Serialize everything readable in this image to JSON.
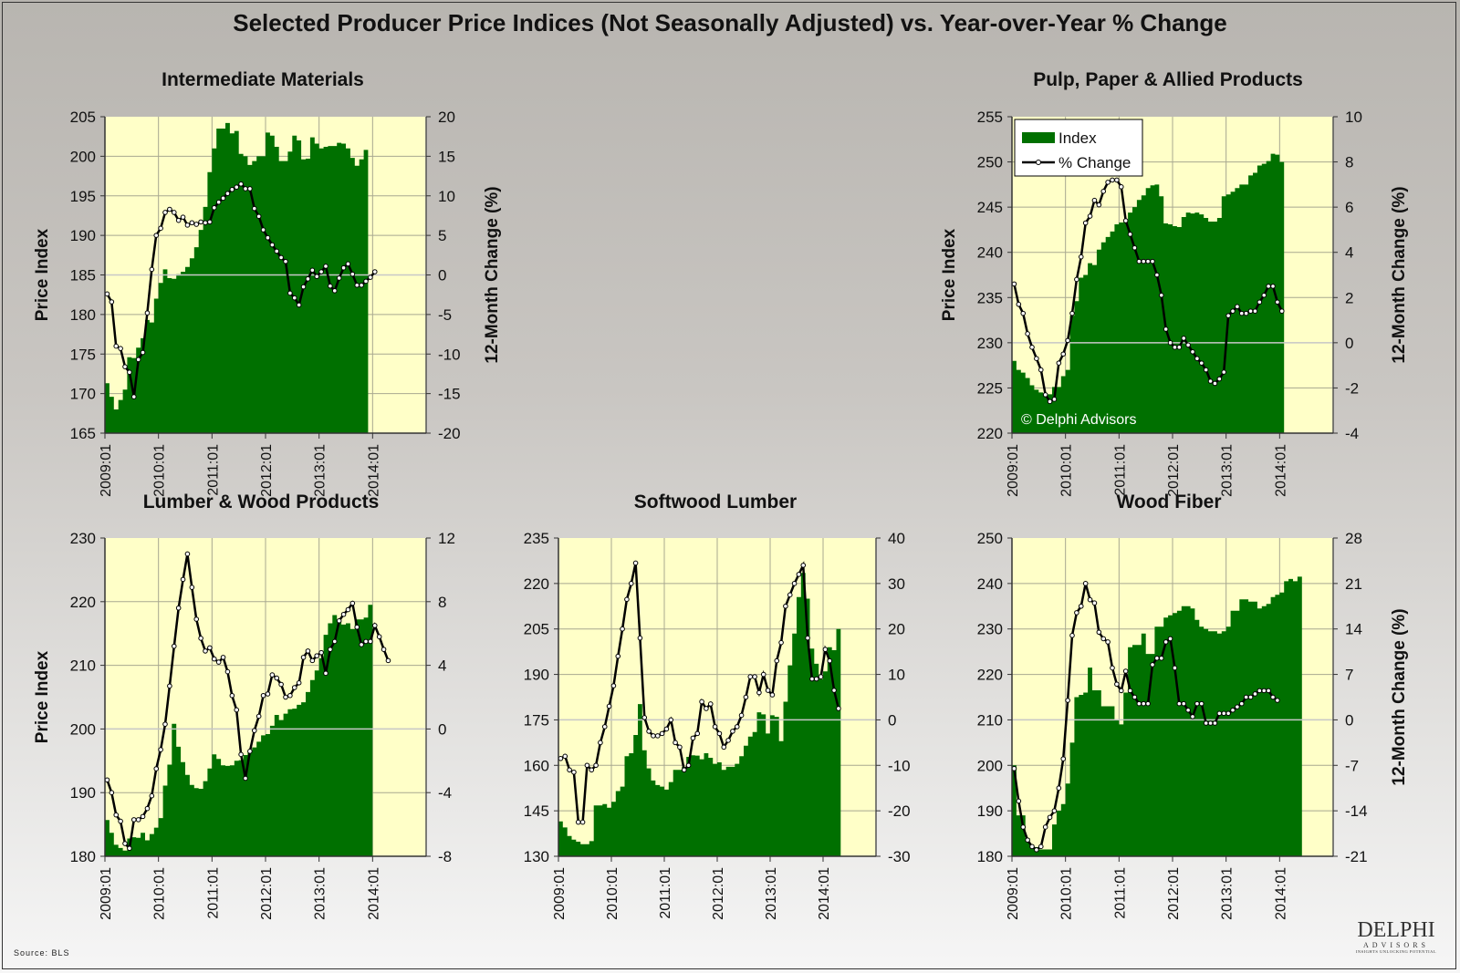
{
  "title": "Selected Producer Price Indices (Not Seasonally Adjusted) vs. Year-over-Year % Change",
  "source": "Source: BLS",
  "logo": {
    "name": "DELPHI",
    "sub": "ADVISORS",
    "tagline": "INSIGHTS UNLOCKING POTENTIAL"
  },
  "colors": {
    "bar": "#007000",
    "plot_bg": "#ffffc8",
    "line": "#000000",
    "marker": "#ffffff",
    "grid": "#a8a890",
    "zero": "#c8c8c8"
  },
  "chart_data": [
    {
      "id": "intermediate",
      "type": "bar+line",
      "title": "Intermediate Materials",
      "ylabel": "Price Index",
      "y2label": "12-Month Change (%)",
      "ylim": [
        165,
        205
      ],
      "yticks": [
        165,
        170,
        175,
        180,
        185,
        190,
        195,
        200,
        205
      ],
      "y2lim": [
        -20,
        20
      ],
      "y2ticks": [
        -20,
        -15,
        -10,
        -5,
        0,
        5,
        10,
        15,
        20
      ],
      "xticks": [
        "2009:01",
        "2010:01",
        "2011:01",
        "2012:01",
        "2013:01",
        "2014:01"
      ],
      "xlim_months": 72,
      "index": [
        171.3,
        169.6,
        168.0,
        169.2,
        170.5,
        174.6,
        174.5,
        175.8,
        177.0,
        179.3,
        179.0,
        182.0,
        184.0,
        185.7,
        184.6,
        184.5,
        185.1,
        185.4,
        186.0,
        187.1,
        188.5,
        190.7,
        193.6,
        198.0,
        201.0,
        203.5,
        203.5,
        204.2,
        202.9,
        203.2,
        200.3,
        200.0,
        198.9,
        199.4,
        200.0,
        200.0,
        203.0,
        202.6,
        201.2,
        199.4,
        199.4,
        200.6,
        202.6,
        202.0,
        199.6,
        199.7,
        202.4,
        201.6,
        201.0,
        201.2,
        201.3,
        201.3,
        201.7,
        201.6,
        201.0,
        199.8,
        198.8,
        199.6,
        200.8
      ],
      "pct": [
        -2.4,
        -3.4,
        -9.0,
        -9.3,
        -11.6,
        -12.3,
        -15.4,
        -10.7,
        -9.8,
        -4.8,
        0.7,
        5.0,
        5.9,
        7.9,
        8.3,
        7.9,
        6.9,
        7.3,
        6.3,
        6.6,
        6.4,
        6.7,
        6.6,
        6.7,
        8.5,
        9.2,
        9.7,
        10.3,
        10.8,
        11.1,
        11.5,
        10.9,
        10.9,
        8.4,
        7.4,
        5.7,
        4.7,
        3.8,
        3.0,
        2.2,
        1.7,
        -2.3,
        -2.9,
        -3.8,
        -1.5,
        -0.5,
        0.6,
        -0.2,
        0.4,
        1.1,
        -1.4,
        -2.0,
        -0.4,
        0.9,
        1.4,
        0.1,
        -1.3,
        -1.3,
        -0.8,
        -0.3,
        0.4
      ],
      "legend": null
    },
    {
      "id": "pulp",
      "type": "bar+line",
      "title": "Pulp, Paper & Allied Products",
      "ylabel": "Price Index",
      "y2label": "12-Month Change (%)",
      "ylim": [
        220,
        255
      ],
      "yticks": [
        220,
        225,
        230,
        235,
        240,
        245,
        250,
        255
      ],
      "y2lim": [
        -4,
        10
      ],
      "y2ticks": [
        -4,
        -2,
        0,
        2,
        4,
        6,
        8,
        10
      ],
      "xticks": [
        "2009:01",
        "2010:01",
        "2011:01",
        "2012:01",
        "2013:01",
        "2014:01"
      ],
      "xlim_months": 72,
      "index": [
        228.0,
        227.0,
        226.7,
        226.1,
        225.3,
        224.8,
        224.5,
        224.2,
        224.3,
        225.1,
        225.1,
        226.3,
        227.0,
        233.0,
        234.6,
        237.2,
        237.5,
        238.8,
        238.6,
        240.3,
        241.1,
        241.7,
        242.3,
        243.1,
        243.3,
        243.4,
        244.4,
        245.0,
        245.8,
        246.3,
        247.1,
        247.4,
        247.5,
        246.2,
        243.2,
        243.1,
        242.9,
        242.8,
        243.9,
        244.4,
        244.3,
        244.4,
        244.2,
        243.8,
        243.4,
        243.4,
        243.8,
        246.2,
        246.4,
        246.7,
        247.1,
        247.5,
        247.5,
        248.5,
        248.8,
        249.6,
        249.8,
        250.1,
        250.9,
        250.8,
        250.0
      ],
      "pct": [
        2.6,
        1.7,
        1.3,
        0.4,
        -0.2,
        -0.7,
        -1.2,
        -2.3,
        -2.6,
        -2.5,
        -0.9,
        -0.5,
        0.1,
        1.3,
        2.8,
        3.8,
        5.3,
        5.6,
        6.3,
        6.1,
        6.7,
        7.1,
        7.2,
        7.2,
        6.9,
        5.4,
        4.8,
        4.2,
        3.6,
        3.6,
        3.6,
        3.6,
        3.0,
        2.1,
        0.6,
        0.0,
        -0.2,
        -0.2,
        0.2,
        -0.1,
        -0.4,
        -0.7,
        -0.9,
        -1.2,
        -1.7,
        -1.8,
        -1.6,
        -1.3,
        1.2,
        1.4,
        1.6,
        1.3,
        1.3,
        1.4,
        1.4,
        1.8,
        2.1,
        2.5,
        2.5,
        1.8,
        1.4
      ],
      "legend": {
        "items": [
          "Index",
          "% Change"
        ],
        "position": "top-left"
      },
      "watermark": "© Delphi Advisors"
    },
    {
      "id": "lumber",
      "type": "bar+line",
      "title": "Lumber & Wood Products",
      "ylabel": "Price Index",
      "y2label": "",
      "ylim": [
        180,
        230
      ],
      "yticks": [
        180,
        190,
        200,
        210,
        220,
        230
      ],
      "y2lim": [
        -8,
        12
      ],
      "y2ticks": [
        -8,
        -4,
        0,
        4,
        8,
        12
      ],
      "xticks": [
        "2009:01",
        "2010:01",
        "2011:01",
        "2012:01",
        "2013:01",
        "2014:01"
      ],
      "xlim_months": 72,
      "index": [
        185.7,
        183.7,
        181.8,
        181.3,
        180.9,
        182.8,
        183.0,
        182.9,
        183.7,
        182.5,
        183.5,
        184.5,
        186.0,
        191.1,
        194.4,
        200.8,
        197.2,
        194.8,
        192.8,
        191.2,
        190.7,
        190.6,
        191.8,
        193.8,
        196.0,
        195.3,
        194.3,
        194.2,
        194.3,
        195.0,
        195.1,
        195.9,
        196.5,
        197.1,
        198.0,
        199.0,
        199.2,
        200.5,
        202.2,
        201.4,
        202.4,
        203.1,
        203.2,
        203.8,
        204.2,
        205.8,
        207.7,
        209.2,
        211.1,
        214.8,
        216.6,
        217.9,
        217.0,
        216.4,
        216.6,
        215.7,
        217.2,
        217.2,
        217.5,
        219.5
      ],
      "pct": [
        -3.2,
        -4.0,
        -5.4,
        -5.8,
        -7.2,
        -7.5,
        -5.7,
        -5.7,
        -5.5,
        -5.0,
        -4.2,
        -2.5,
        -1.3,
        0.3,
        2.7,
        5.2,
        7.6,
        9.4,
        11.0,
        8.9,
        6.9,
        5.7,
        4.9,
        5.1,
        4.4,
        4.2,
        4.5,
        3.6,
        2.1,
        1.2,
        -1.6,
        -3.1,
        -1.4,
        -0.1,
        0.8,
        2.1,
        2.2,
        3.4,
        3.2,
        2.8,
        2.0,
        2.1,
        2.6,
        2.9,
        4.5,
        4.9,
        4.3,
        4.6,
        4.8,
        3.5,
        5.0,
        5.5,
        6.8,
        7.2,
        7.5,
        7.9,
        6.4,
        5.3,
        5.5,
        5.5,
        6.5,
        5.8,
        5.0,
        4.3
      ],
      "legend": null
    },
    {
      "id": "softwood",
      "type": "bar+line",
      "title": "Softwood Lumber",
      "ylabel": "",
      "y2label": "",
      "ylim": [
        130,
        235
      ],
      "yticks": [
        130,
        145,
        160,
        175,
        190,
        205,
        220,
        235
      ],
      "y2lim": [
        -30,
        40
      ],
      "y2ticks": [
        -30,
        -20,
        -10,
        0,
        10,
        20,
        30,
        40
      ],
      "xticks": [
        "2009:01",
        "2010:01",
        "2011:01",
        "2012:01",
        "2013:01",
        "2014:01"
      ],
      "xlim_months": 72,
      "index": [
        141.5,
        139.5,
        136.7,
        135.5,
        134.8,
        134.0,
        134.0,
        135.0,
        146.8,
        146.8,
        147.2,
        146.0,
        148.0,
        151.5,
        153.0,
        163.0,
        164.0,
        170.0,
        180.2,
        165.0,
        159.0,
        155.0,
        153.5,
        153.0,
        152.0,
        154.5,
        158.5,
        158.5,
        159.5,
        162.8,
        163.3,
        163.2,
        162.0,
        164.0,
        162.5,
        160.5,
        161.0,
        158.5,
        159.5,
        159.5,
        160.5,
        163.0,
        166.5,
        169.5,
        171.0,
        177.5,
        176.8,
        170.5,
        176.5,
        176.0,
        168.0,
        181.0,
        193.0,
        203.5,
        215.5,
        223.5,
        215.0,
        198.5,
        193.5,
        188.5,
        191.0,
        199.0,
        198.0,
        205.0
      ],
      "pct": [
        -8.5,
        -8.0,
        -11.0,
        -11.5,
        -22.5,
        -22.5,
        -10.0,
        -11.0,
        -10.0,
        -5.0,
        -1.5,
        3.0,
        7.5,
        14.0,
        20.0,
        26.5,
        30.0,
        34.5,
        18.0,
        0.5,
        -2.5,
        -3.5,
        -3.5,
        -3.0,
        -2.0,
        0.0,
        -5.0,
        -6.0,
        -11.0,
        -10.0,
        -4.0,
        -3.0,
        4.0,
        2.5,
        3.5,
        -1.5,
        -3.0,
        -6.0,
        -4.5,
        -2.5,
        -1.5,
        1.0,
        5.0,
        9.5,
        9.5,
        6.0,
        10.0,
        6.5,
        5.5,
        13.0,
        17.0,
        25.0,
        27.5,
        30.0,
        32.0,
        34.0,
        18.0,
        9.0,
        9.0,
        9.5,
        15.5,
        13.0,
        6.5,
        2.5
      ],
      "legend": null
    },
    {
      "id": "woodfiber",
      "type": "bar+line",
      "title": "Wood Fiber",
      "ylabel": "",
      "y2label": "12-Month Change (%)",
      "ylim": [
        180,
        250
      ],
      "yticks": [
        180,
        190,
        200,
        210,
        220,
        230,
        240,
        250
      ],
      "y2lim": [
        -21,
        28
      ],
      "y2ticks": [
        -21,
        -14,
        -7,
        0,
        7,
        14,
        21,
        28
      ],
      "xticks": [
        "2009:01",
        "2010:01",
        "2011:01",
        "2012:01",
        "2013:01",
        "2014:01"
      ],
      "xlim_months": 72,
      "index": [
        200.0,
        189.0,
        189.0,
        184.0,
        182.5,
        182.0,
        181.5,
        181.5,
        181.5,
        187.0,
        190.0,
        191.5,
        196.0,
        205.0,
        215.0,
        215.5,
        216.0,
        221.5,
        216.5,
        216.5,
        213.0,
        213.0,
        213.0,
        210.0,
        209.0,
        216.0,
        226.0,
        226.5,
        226.5,
        229.0,
        224.5,
        224.5,
        230.5,
        230.5,
        232.5,
        233.0,
        233.5,
        234.0,
        235.0,
        235.0,
        234.5,
        232.0,
        230.5,
        230.0,
        229.5,
        229.5,
        229.0,
        229.5,
        230.5,
        234.0,
        234.0,
        236.5,
        236.5,
        236.0,
        236.0,
        234.5,
        235.0,
        235.5,
        237.0,
        237.5,
        238.0,
        240.5,
        241.0,
        240.5,
        241.5
      ],
      "pct": [
        -7.5,
        -12.5,
        -16.5,
        -18.5,
        -19.5,
        -20.0,
        -19.5,
        -16.5,
        -15.0,
        -14.0,
        -10.5,
        -6.0,
        3.0,
        13.0,
        16.5,
        17.5,
        21.0,
        18.5,
        18.0,
        13.5,
        12.5,
        12.0,
        8.0,
        5.5,
        4.5,
        7.5,
        4.5,
        3.5,
        2.5,
        2.5,
        2.5,
        8.5,
        9.5,
        9.5,
        12.0,
        12.5,
        8.0,
        2.5,
        2.5,
        1.5,
        0.5,
        2.5,
        2.5,
        -0.5,
        -0.5,
        -0.5,
        1.0,
        1.0,
        1.0,
        1.5,
        2.0,
        2.5,
        3.5,
        3.5,
        4.0,
        4.5,
        4.5,
        4.5,
        3.5,
        3.0
      ],
      "legend": null
    }
  ]
}
